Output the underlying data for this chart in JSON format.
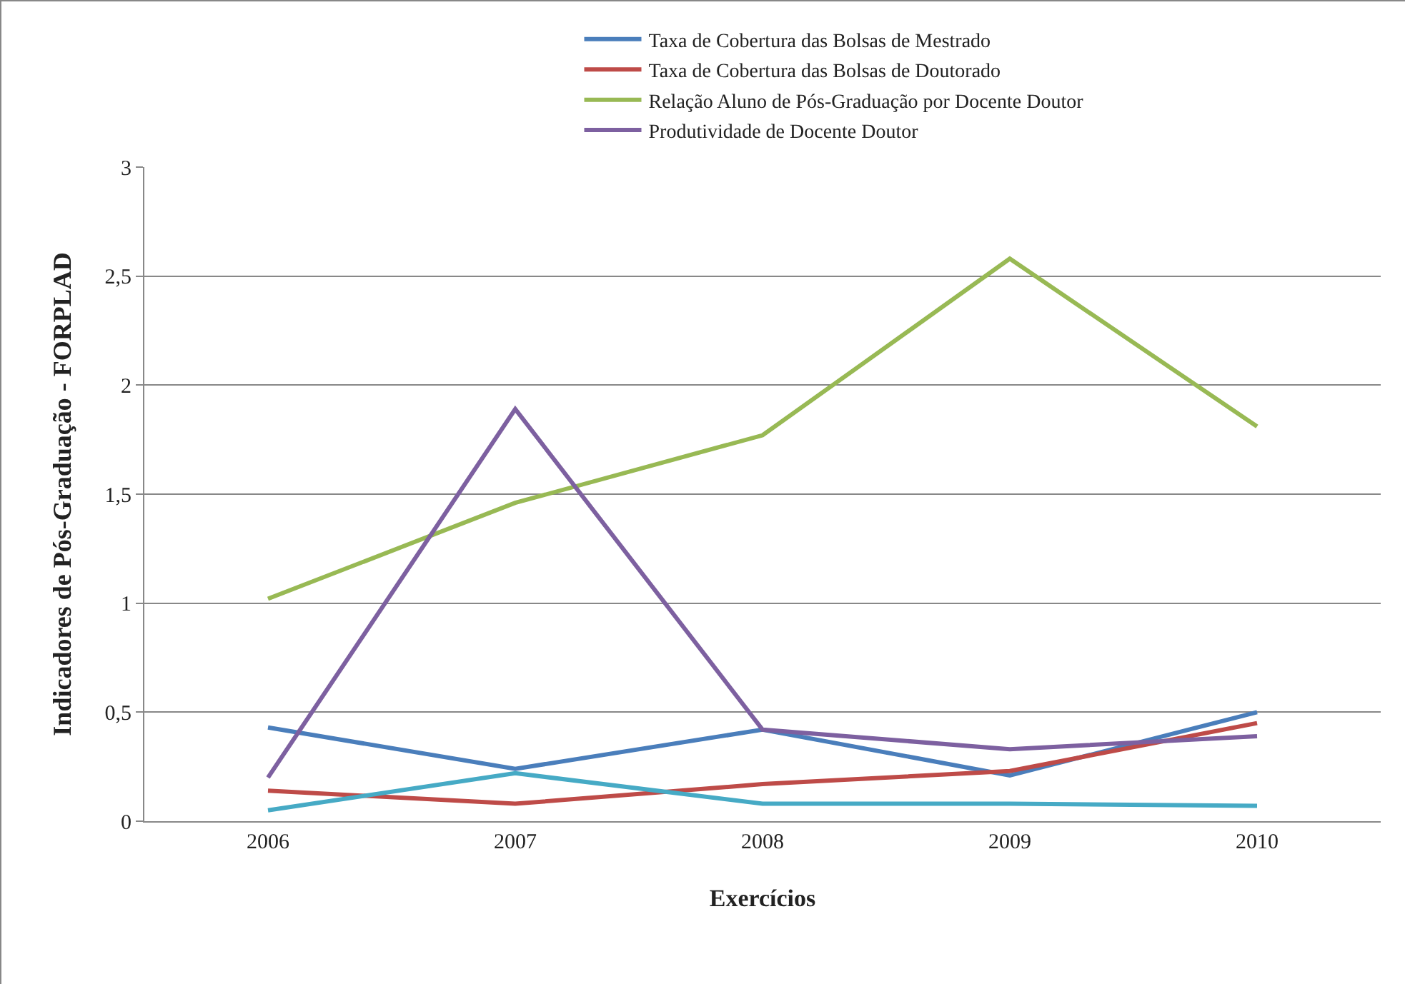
{
  "chart_data": {
    "type": "line",
    "xlabel": "Exercícios",
    "ylabel": "Indicadores de Pós-Graduação - FORPLAD",
    "categories": [
      "2006",
      "2007",
      "2008",
      "2009",
      "2010"
    ],
    "series": [
      {
        "name": "Taxa de Cobertura das Bolsas de Mestrado",
        "color": "#4a7ebb",
        "values": [
          0.43,
          0.24,
          0.42,
          0.21,
          0.5
        ]
      },
      {
        "name": "Taxa de Cobertura das Bolsas de Doutorado",
        "color": "#be4b48",
        "values": [
          0.14,
          0.08,
          0.17,
          0.23,
          0.45
        ]
      },
      {
        "name": "Relação Aluno de Pós-Graduação por Docente Doutor",
        "color": "#98b954",
        "values": [
          1.02,
          1.46,
          1.77,
          2.58,
          1.81
        ]
      },
      {
        "name": "Produtividade de Docente Doutor",
        "color": "#7d60a0",
        "values": [
          0.2,
          1.89,
          0.42,
          0.33,
          0.39
        ]
      },
      {
        "color": "#46aac5",
        "values": [
          0.05,
          0.22,
          0.08,
          0.08,
          0.07
        ]
      }
    ],
    "ylim": [
      0,
      3
    ],
    "yticks": [
      0,
      {
        "value": 0.5,
        "label": "0,5"
      },
      1,
      {
        "value": 1.5,
        "label": "1,5"
      },
      2,
      {
        "value": 2.5,
        "label": "2,5"
      },
      3
    ],
    "grid": "y",
    "legend": "top",
    "marker": "none",
    "line_style": "solid"
  }
}
